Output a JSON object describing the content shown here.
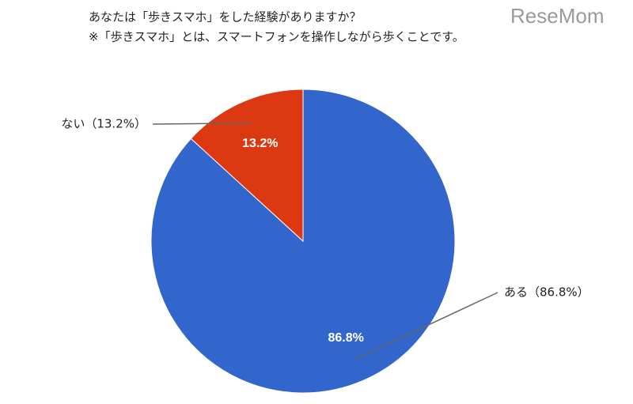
{
  "chart_data": {
    "type": "pie",
    "title": "あなたは「歩きスマホ」をした経験がありますか？",
    "subtitle": "※「歩きスマホ」とは、スマートフォンを操作しながら歩くことです。",
    "watermark": "ReseMom",
    "categories": [
      "ある",
      "ない"
    ],
    "values": [
      86.8,
      13.2
    ],
    "value_labels": [
      "86.8%",
      "13.2%"
    ],
    "outer_labels": [
      "ある（86.8%）",
      "ない（13.2%）"
    ],
    "colors": [
      "#3366cc",
      "#dc3912"
    ]
  }
}
